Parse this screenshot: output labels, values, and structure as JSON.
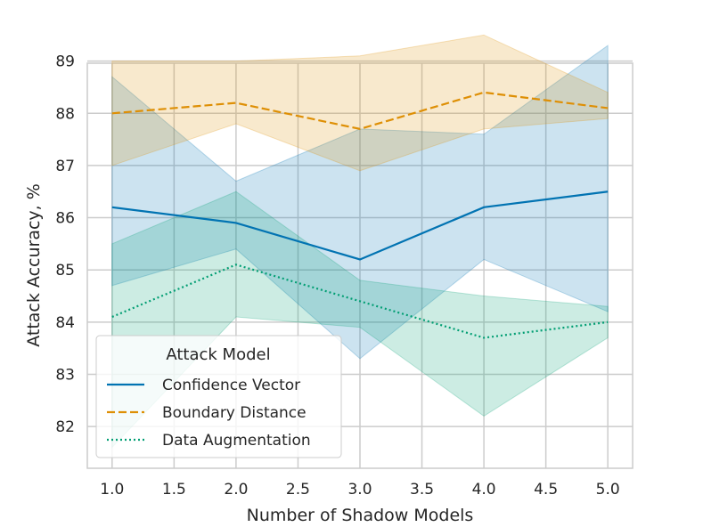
{
  "chart_data": {
    "type": "line",
    "title": "",
    "xlabel": "Number of Shadow Models",
    "ylabel": "Attack Accuracy, %",
    "x": [
      1.0,
      2.0,
      3.0,
      4.0,
      5.0
    ],
    "xlim": [
      0.8,
      5.2
    ],
    "ylim": [
      81.2,
      88.96
    ],
    "xticks": [
      1.0,
      1.5,
      2.0,
      2.5,
      3.0,
      3.5,
      4.0,
      4.5,
      5.0
    ],
    "xtick_labels": [
      "1.0",
      "1.5",
      "2.0",
      "2.5",
      "3.0",
      "3.5",
      "4.0",
      "4.5",
      "5.0"
    ],
    "yticks": [
      82,
      83,
      84,
      85,
      86,
      87,
      88,
      89
    ],
    "ytick_labels": [
      "82",
      "83",
      "84",
      "85",
      "86",
      "87",
      "88",
      "89"
    ],
    "grid": true,
    "legend": {
      "title": "Attack Model",
      "position": "lower-left"
    },
    "series": [
      {
        "name": "Confidence Vector",
        "color": "#0173b2",
        "dash": "solid",
        "values": [
          86.2,
          85.9,
          85.2,
          86.2,
          86.5
        ],
        "lower": [
          84.7,
          85.4,
          83.3,
          85.2,
          84.2
        ],
        "upper": [
          88.7,
          86.7,
          87.7,
          87.6,
          89.3
        ]
      },
      {
        "name": "Boundary Distance",
        "color": "#de8f05",
        "dash": "dashed",
        "values": [
          88.0,
          88.2,
          87.7,
          88.4,
          88.1
        ],
        "lower": [
          87.0,
          87.8,
          86.9,
          87.7,
          87.9
        ],
        "upper": [
          89.0,
          89.0,
          89.1,
          89.5,
          88.4
        ]
      },
      {
        "name": "Data Augmentation",
        "color": "#029e73",
        "dash": "dotted",
        "values": [
          84.1,
          85.1,
          84.4,
          83.7,
          84.0
        ],
        "lower": [
          81.6,
          84.1,
          83.9,
          82.2,
          83.7
        ],
        "upper": [
          85.5,
          86.5,
          84.8,
          84.5,
          84.3
        ]
      }
    ]
  }
}
